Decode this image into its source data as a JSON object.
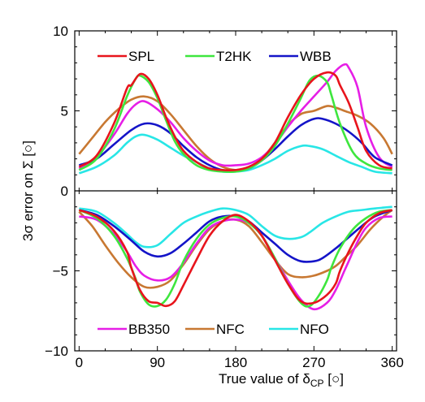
{
  "chart_data": {
    "type": "line",
    "xlabel_parts": {
      "main": "True value of δ",
      "sub": "CP",
      "unit": " [○]"
    },
    "ylabel_parts": {
      "main": "3σ error on Σ [○]"
    },
    "xlim": [
      -5,
      365
    ],
    "ylim": [
      -10,
      10
    ],
    "x_ticks": [
      0,
      90,
      180,
      270,
      360
    ],
    "x_tick_labels": [
      "0",
      "90",
      "180",
      "270",
      "360"
    ],
    "y_ticks": [
      -10,
      -5,
      0,
      5,
      10
    ],
    "y_tick_labels": [
      "−10",
      "−5",
      "0",
      "5",
      "10"
    ],
    "grid": false,
    "zero_line": true,
    "legend_top": [
      "SPL",
      "T2HK",
      "WBB"
    ],
    "legend_bottom": [
      "BB350",
      "NFC",
      "NFO"
    ],
    "legend_placement_top": "top",
    "legend_placement_bottom": "bottom",
    "colors": {
      "SPL": "#e8141c",
      "T2HK": "#3ee63e",
      "WBB": "#1414c8",
      "BB350": "#e61ee6",
      "NFC": "#c87832",
      "NFO": "#28e6e6"
    },
    "series": [
      {
        "name": "SPL",
        "x": [
          0,
          20,
          40,
          55,
          60,
          70,
          80,
          90,
          100,
          110,
          120,
          135,
          150,
          165,
          180,
          195,
          210,
          225,
          240,
          255,
          270,
          285,
          295,
          300,
          310,
          320,
          330,
          345,
          360
        ],
        "upper": [
          1.5,
          2.2,
          4.2,
          6.4,
          6.6,
          7.3,
          7.0,
          6.0,
          4.6,
          3.4,
          2.5,
          1.8,
          1.4,
          1.3,
          1.3,
          1.5,
          2.0,
          3.0,
          4.6,
          6.0,
          7.0,
          7.4,
          7.2,
          6.6,
          5.5,
          4.0,
          2.5,
          1.6,
          1.4
        ],
        "lower": [
          -1.2,
          -1.6,
          -2.5,
          -3.8,
          -4.8,
          -6.2,
          -6.9,
          -7.0,
          -7.2,
          -6.9,
          -5.9,
          -4.3,
          -2.8,
          -1.9,
          -1.5,
          -1.9,
          -2.8,
          -4.3,
          -5.8,
          -6.9,
          -7.0,
          -6.5,
          -5.8,
          -5.0,
          -3.8,
          -2.8,
          -2.0,
          -1.4,
          -1.2
        ]
      },
      {
        "name": "T2HK",
        "x": [
          0,
          20,
          40,
          55,
          65,
          70,
          80,
          90,
          100,
          110,
          120,
          135,
          150,
          165,
          180,
          195,
          210,
          225,
          240,
          255,
          265,
          275,
          285,
          290,
          300,
          315,
          330,
          345,
          360
        ],
        "upper": [
          1.3,
          2.0,
          3.8,
          5.9,
          7.0,
          7.2,
          6.8,
          5.8,
          4.4,
          3.1,
          2.3,
          1.6,
          1.3,
          1.2,
          1.2,
          1.4,
          1.9,
          2.8,
          4.2,
          5.8,
          6.9,
          7.2,
          6.8,
          6.0,
          4.2,
          2.4,
          1.7,
          1.4,
          1.3
        ],
        "lower": [
          -1.2,
          -1.7,
          -2.8,
          -4.2,
          -5.5,
          -6.3,
          -7.1,
          -7.2,
          -6.8,
          -5.8,
          -4.4,
          -3.0,
          -2.1,
          -1.7,
          -1.6,
          -2.0,
          -2.8,
          -4.2,
          -5.8,
          -7.0,
          -7.2,
          -6.6,
          -5.6,
          -4.8,
          -3.6,
          -2.4,
          -1.7,
          -1.3,
          -1.2
        ]
      },
      {
        "name": "WBB",
        "x": [
          0,
          20,
          40,
          60,
          75,
          90,
          105,
          120,
          135,
          150,
          165,
          180,
          195,
          210,
          225,
          240,
          255,
          270,
          280,
          295,
          310,
          325,
          340,
          360
        ],
        "upper": [
          1.6,
          2.0,
          2.9,
          3.8,
          4.2,
          4.1,
          3.6,
          2.8,
          2.1,
          1.6,
          1.3,
          1.3,
          1.4,
          1.9,
          2.6,
          3.4,
          4.1,
          4.5,
          4.5,
          4.2,
          3.7,
          3.0,
          2.1,
          1.6
        ],
        "lower": [
          -1.2,
          -1.5,
          -2.2,
          -3.1,
          -3.8,
          -4.1,
          -3.9,
          -3.3,
          -2.6,
          -1.9,
          -1.6,
          -1.6,
          -1.9,
          -2.6,
          -3.3,
          -4.0,
          -4.4,
          -4.4,
          -4.2,
          -3.6,
          -2.9,
          -2.2,
          -1.6,
          -1.2
        ]
      },
      {
        "name": "BB350",
        "x": [
          0,
          20,
          40,
          55,
          65,
          75,
          90,
          105,
          120,
          135,
          150,
          165,
          180,
          195,
          210,
          225,
          240,
          255,
          270,
          285,
          295,
          305,
          310,
          320,
          330,
          345,
          360
        ],
        "upper": [
          1.4,
          2.1,
          3.5,
          4.8,
          5.4,
          5.6,
          5.1,
          4.3,
          3.3,
          2.5,
          1.9,
          1.6,
          1.6,
          1.7,
          2.1,
          2.9,
          4.0,
          5.0,
          5.9,
          6.8,
          7.5,
          7.9,
          7.7,
          6.5,
          4.0,
          2.1,
          1.5
        ],
        "lower": [
          -1.6,
          -1.8,
          -2.7,
          -3.8,
          -4.7,
          -5.3,
          -5.6,
          -5.4,
          -4.5,
          -3.3,
          -2.3,
          -1.9,
          -1.8,
          -2.0,
          -2.8,
          -4.2,
          -5.6,
          -6.8,
          -7.4,
          -7.0,
          -6.2,
          -5.0,
          -4.4,
          -3.2,
          -2.3,
          -1.7,
          -1.6
        ]
      },
      {
        "name": "NFC",
        "x": [
          0,
          15,
          30,
          45,
          60,
          75,
          90,
          105,
          120,
          135,
          150,
          165,
          180,
          195,
          210,
          225,
          240,
          255,
          270,
          285,
          295,
          305,
          320,
          335,
          350,
          360
        ],
        "upper": [
          2.3,
          3.3,
          4.3,
          5.1,
          5.7,
          5.9,
          5.6,
          4.8,
          3.8,
          2.8,
          2.0,
          1.5,
          1.3,
          1.4,
          2.0,
          3.0,
          4.1,
          4.8,
          5.0,
          5.3,
          5.2,
          5.0,
          4.7,
          4.2,
          3.3,
          2.3
        ],
        "lower": [
          -1.3,
          -2.2,
          -3.4,
          -4.5,
          -5.4,
          -6.0,
          -6.0,
          -5.6,
          -4.6,
          -3.4,
          -2.4,
          -1.9,
          -1.8,
          -2.2,
          -3.2,
          -4.3,
          -5.2,
          -5.4,
          -5.3,
          -5.0,
          -4.7,
          -4.2,
          -3.4,
          -2.4,
          -1.6,
          -1.2
        ]
      },
      {
        "name": "NFO",
        "x": [
          0,
          20,
          40,
          55,
          65,
          75,
          90,
          105,
          120,
          135,
          150,
          165,
          180,
          195,
          210,
          225,
          240,
          255,
          265,
          280,
          295,
          310,
          325,
          340,
          360
        ],
        "upper": [
          1.1,
          1.5,
          2.2,
          3.0,
          3.4,
          3.5,
          3.2,
          2.7,
          2.2,
          1.8,
          1.4,
          1.2,
          1.2,
          1.3,
          1.6,
          2.0,
          2.5,
          2.8,
          2.8,
          2.6,
          2.2,
          1.8,
          1.5,
          1.2,
          1.1
        ],
        "lower": [
          -1.1,
          -1.3,
          -2.0,
          -2.7,
          -3.2,
          -3.5,
          -3.4,
          -2.7,
          -2.0,
          -1.6,
          -1.3,
          -1.1,
          -1.2,
          -1.5,
          -2.2,
          -2.8,
          -3.0,
          -2.9,
          -2.6,
          -2.0,
          -1.6,
          -1.3,
          -1.2,
          -1.1,
          -1.0
        ]
      }
    ]
  }
}
